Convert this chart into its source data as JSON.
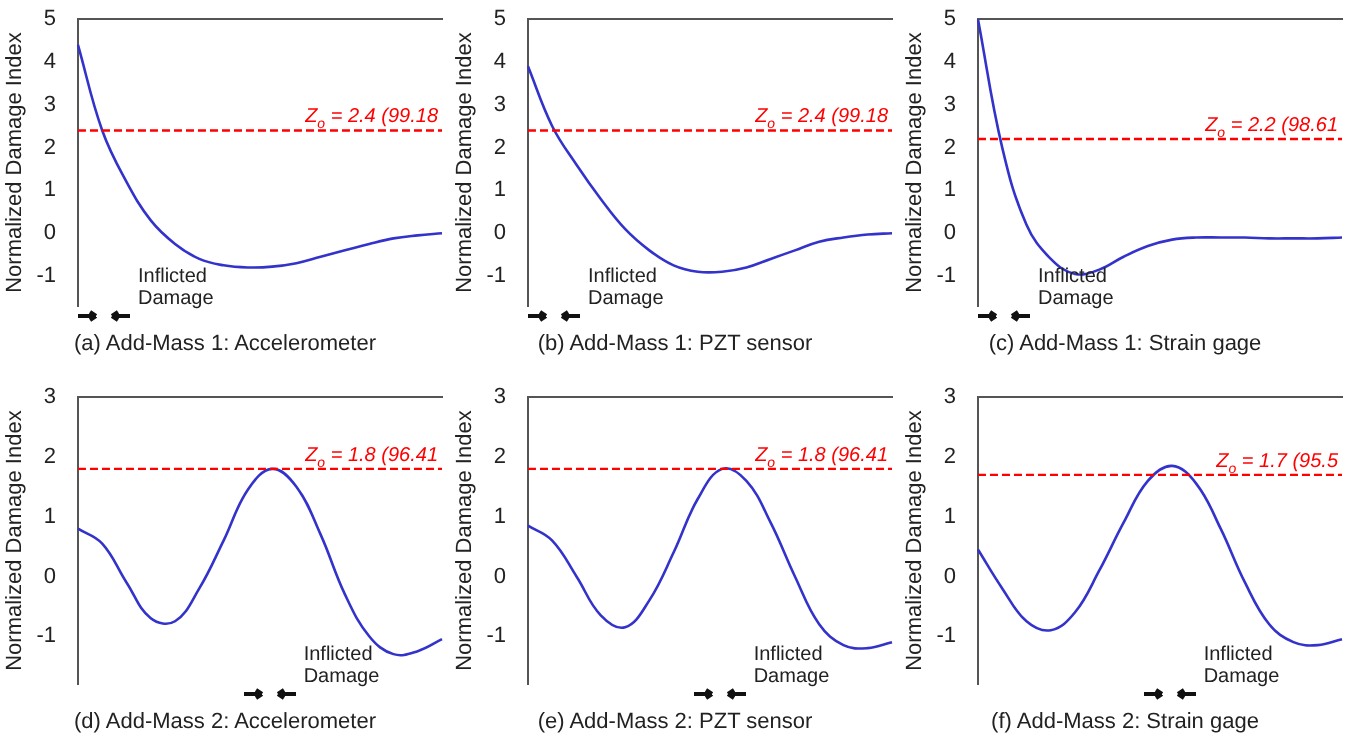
{
  "chart_data": [
    {
      "type": "line",
      "title": "(a)  Add-Mass 1:  Accelerometer",
      "ylabel": "Normalized Damage Index",
      "categories": [
        null,
        null,
        null,
        null,
        null,
        null,
        null,
        null,
        null,
        null,
        null,
        null,
        null,
        null,
        null,
        null
      ],
      "series": [
        {
          "color": "#3333cc",
          "values": [
            4.4,
            2.4,
            1.2,
            0.3,
            -0.25,
            -0.6,
            -0.75,
            -0.8,
            -0.78,
            -0.7,
            -0.55,
            -0.4,
            -0.25,
            -0.12,
            -0.05,
            0.0
          ]
        }
      ],
      "ylim": [
        -1.7,
        5
      ],
      "yticks": [
        -1,
        0,
        1,
        2,
        3,
        4,
        5
      ],
      "ref_lines": [
        {
          "axis": "y",
          "value": 2.4,
          "label": "Z$_{o}$ = 2.4 (99.18",
          "color": "#ff0000",
          "line_style": "dashed"
        }
      ],
      "annotations": [
        "Inflicted Damage"
      ],
      "grid": false,
      "legend": false,
      "marker": "none"
    },
    {
      "type": "line",
      "title": "(b)  Add-Mass 1:  PZT sensor",
      "ylabel": "Normalized Damage Index",
      "categories": [
        null,
        null,
        null,
        null,
        null,
        null,
        null,
        null,
        null,
        null,
        null,
        null,
        null,
        null,
        null,
        null
      ],
      "series": [
        {
          "color": "#3333cc",
          "values": [
            3.9,
            2.5,
            1.6,
            0.8,
            0.1,
            -0.4,
            -0.75,
            -0.9,
            -0.9,
            -0.8,
            -0.6,
            -0.4,
            -0.2,
            -0.1,
            -0.03,
            0.0
          ]
        }
      ],
      "ylim": [
        -1.7,
        5
      ],
      "yticks": [
        -1,
        0,
        1,
        2,
        3,
        4,
        5
      ],
      "ref_lines": [
        {
          "axis": "y",
          "value": 2.4,
          "label": "Z$_{o}$ = 2.4 (99.18",
          "color": "#ff0000",
          "line_style": "dashed"
        }
      ],
      "annotations": [
        "Inflicted Damage"
      ],
      "grid": false,
      "legend": false,
      "marker": "none"
    },
    {
      "type": "line",
      "title": "(c)  Add-Mass 1:  Strain gage",
      "ylabel": "Normalized Damage Index",
      "categories": [
        null,
        null,
        null,
        null,
        null,
        null,
        null,
        null,
        null,
        null,
        null,
        null,
        null,
        null,
        null,
        null
      ],
      "series": [
        {
          "color": "#3333cc",
          "values": [
            5.0,
            2.0,
            0.2,
            -0.6,
            -0.95,
            -0.85,
            -0.55,
            -0.3,
            -0.15,
            -0.1,
            -0.1,
            -0.1,
            -0.12,
            -0.12,
            -0.12,
            -0.1
          ]
        }
      ],
      "ylim": [
        -1.7,
        5
      ],
      "yticks": [
        -1,
        0,
        1,
        2,
        3,
        4,
        5
      ],
      "ref_lines": [
        {
          "axis": "y",
          "value": 2.2,
          "label": "Z$_{o}$ = 2.2 (98.61",
          "color": "#ff0000",
          "line_style": "dashed"
        }
      ],
      "annotations": [
        "Inflicted Damage"
      ],
      "grid": false,
      "legend": false,
      "marker": "none"
    },
    {
      "type": "line",
      "title": "(d)  Add-Mass 2:  Accelerometer",
      "ylabel": "Normalized Damage Index",
      "categories": [
        null,
        null,
        null,
        null,
        null,
        null,
        null,
        null,
        null,
        null,
        null,
        null,
        null,
        null,
        null,
        null
      ],
      "series": [
        {
          "color": "#3333cc",
          "values": [
            0.8,
            0.55,
            -0.1,
            -0.7,
            -0.75,
            -0.2,
            0.6,
            1.45,
            1.8,
            1.5,
            0.7,
            -0.3,
            -1.0,
            -1.3,
            -1.25,
            -1.05
          ]
        }
      ],
      "ylim": [
        -1.8,
        3
      ],
      "yticks": [
        -1,
        0,
        1,
        2,
        3
      ],
      "ref_lines": [
        {
          "axis": "y",
          "value": 1.8,
          "label": "Z$_{o}$ = 1.8 (96.41",
          "color": "#ff0000",
          "line_style": "dashed"
        }
      ],
      "annotations": [
        "Inflicted Damage"
      ],
      "grid": false,
      "legend": false,
      "marker": "none"
    },
    {
      "type": "line",
      "title": "(e)  Add-Mass 2:  PZT sensor",
      "ylabel": "Normalized Damage Index",
      "categories": [
        null,
        null,
        null,
        null,
        null,
        null,
        null,
        null,
        null,
        null,
        null,
        null,
        null,
        null,
        null,
        null
      ],
      "series": [
        {
          "color": "#3333cc",
          "values": [
            0.85,
            0.6,
            0.0,
            -0.65,
            -0.85,
            -0.4,
            0.4,
            1.3,
            1.8,
            1.6,
            0.9,
            0.0,
            -0.8,
            -1.15,
            -1.2,
            -1.1
          ]
        }
      ],
      "ylim": [
        -1.8,
        3
      ],
      "yticks": [
        -1,
        0,
        1,
        2,
        3
      ],
      "ref_lines": [
        {
          "axis": "y",
          "value": 1.8,
          "label": "Z$_{o}$ = 1.8 (96.41",
          "color": "#ff0000",
          "line_style": "dashed"
        }
      ],
      "annotations": [
        "Inflicted Damage"
      ],
      "grid": false,
      "legend": false,
      "marker": "none"
    },
    {
      "type": "line",
      "title": "(f)  Add-Mass 2:  Strain gage",
      "ylabel": "Normalized Damage Index",
      "categories": [
        null,
        null,
        null,
        null,
        null,
        null,
        null,
        null,
        null,
        null,
        null,
        null,
        null,
        null,
        null,
        null
      ],
      "series": [
        {
          "color": "#3333cc",
          "values": [
            0.45,
            -0.2,
            -0.75,
            -0.9,
            -0.6,
            0.1,
            0.9,
            1.6,
            1.85,
            1.55,
            0.8,
            -0.1,
            -0.8,
            -1.1,
            -1.15,
            -1.05
          ]
        }
      ],
      "ylim": [
        -1.8,
        3
      ],
      "yticks": [
        -1,
        0,
        1,
        2,
        3
      ],
      "ref_lines": [
        {
          "axis": "y",
          "value": 1.7,
          "label": "Z$_{o}$ = 1.7 (95.5",
          "color": "#ff0000",
          "line_style": "dashed"
        }
      ],
      "annotations": [
        "Inflicted Damage"
      ],
      "grid": false,
      "legend": false,
      "marker": "none"
    }
  ]
}
